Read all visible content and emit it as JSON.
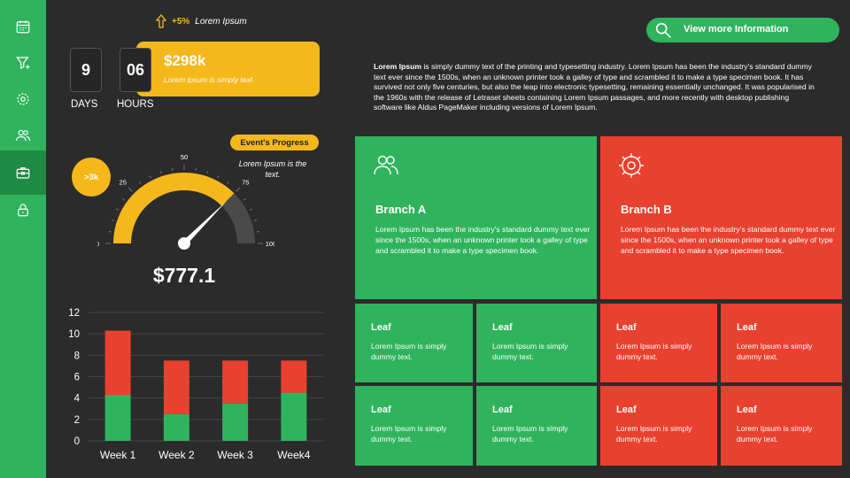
{
  "sidebar": {
    "items": [
      {
        "icon": "calendar-icon"
      },
      {
        "icon": "filter-icon"
      },
      {
        "icon": "gear-icon"
      },
      {
        "icon": "users-icon"
      },
      {
        "icon": "briefcase-icon",
        "active": true
      },
      {
        "icon": "lock-icon"
      }
    ]
  },
  "trend": {
    "percent": "+5%",
    "label": "Lorem Ipsum"
  },
  "counters": {
    "days_value": "9",
    "days_label": "DAYS",
    "hours_value": "06",
    "hours_label": "HOURS"
  },
  "price_card": {
    "value": "$298k",
    "caption": "Lorem ipsum is simply text"
  },
  "gauge": {
    "pill": "Event's Progress",
    "badge": ">3k",
    "note": "Lorem Ipsum is the text.",
    "ticks": [
      "0",
      "25",
      "50",
      "75",
      "100"
    ],
    "progress": 75,
    "value": "$777.1",
    "colors": {
      "fill": "#f5b81b",
      "track": "#4a4a4a"
    }
  },
  "chart_data": {
    "type": "bar",
    "stacked": true,
    "categories": [
      "Week 1",
      "Week 2",
      "Week 3",
      "Week4"
    ],
    "series": [
      {
        "color": "#2fb45d",
        "values": [
          4.3,
          2.5,
          3.5,
          4.5
        ]
      },
      {
        "color": "#e8412f",
        "values": [
          6.0,
          5.0,
          4.0,
          3.0
        ]
      }
    ],
    "ylim": [
      0,
      12
    ],
    "yticks": [
      "0",
      "2",
      "4",
      "6",
      "8",
      "10",
      "12"
    ],
    "grid": true
  },
  "header": {
    "info_button": "View  more Information"
  },
  "description": {
    "lead": "Lorem Ipsum",
    "body": " is simply dummy text of the printing and typesetting industry. Lorem Ipsum has been the industry's standard dummy text ever since the 1500s, when an unknown printer took a galley of type and scrambled it to make a type specimen book. It has survived not only five centuries, but also the leap into electronic typesetting, remaining essentially unchanged. It was popularised in the 1960s with the release of Letraset sheets containing Lorem Ipsum passages, and more recently with desktop publishing software like Aldus PageMaker including versions of Lorem Ipsum."
  },
  "branches": [
    {
      "icon": "users-icon",
      "title": "Branch A",
      "text": "Lorem Ipsum has been the industry's standard dummy text ever since the 1500s, when an unknown printer took a galley of type and scrambled it to make a type specimen book.",
      "color": "green"
    },
    {
      "icon": "gear-icon",
      "title": "Branch B",
      "text": "Lorem Ipsum has been the industry's standard dummy text ever since the 1500s, when an unknown printer took a galley of type and scrambled it to make a type specimen book.",
      "color": "red"
    }
  ],
  "leaves": [
    {
      "title": "Leaf",
      "text": "Lorem Ipsum is simply dummy text.",
      "color": "green"
    },
    {
      "title": "Leaf",
      "text": "Lorem Ipsum is simply dummy text.",
      "color": "green"
    },
    {
      "title": "Leaf",
      "text": "Lorem Ipsum is simply dummy text.",
      "color": "red"
    },
    {
      "title": "Leaf",
      "text": "Lorem Ipsum is simply dummy text.",
      "color": "red"
    },
    {
      "title": "Leaf",
      "text": "Lorem Ipsum is simply dummy text.",
      "color": "green"
    },
    {
      "title": "Leaf",
      "text": "Lorem Ipsum is simply dummy text.",
      "color": "green"
    },
    {
      "title": "Leaf",
      "text": "Lorem Ipsum is simply dummy text.",
      "color": "red"
    },
    {
      "title": "Leaf",
      "text": "Lorem Ipsum is simply dummy text.",
      "color": "red"
    }
  ]
}
